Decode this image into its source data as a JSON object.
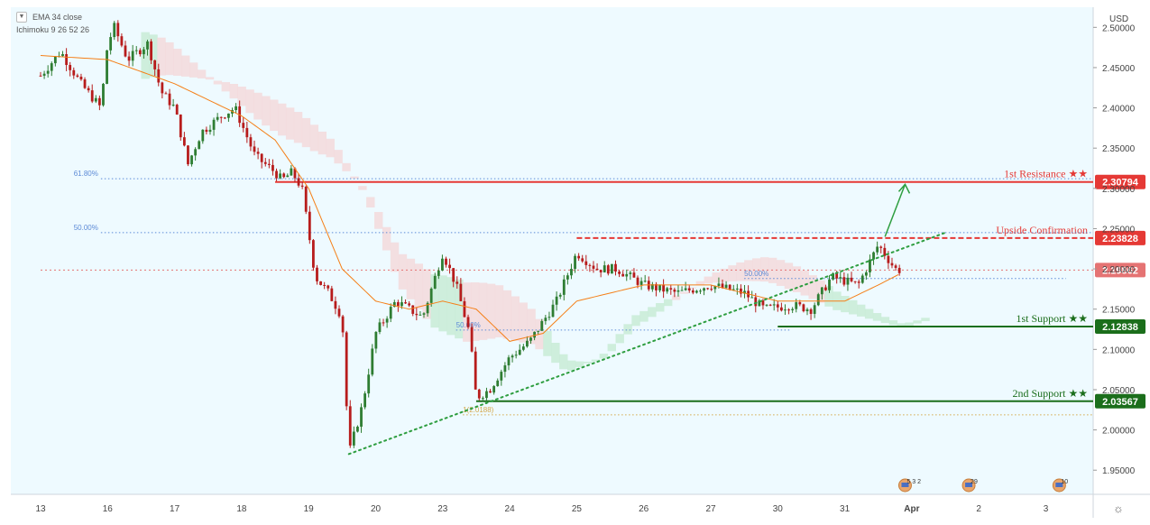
{
  "legend": {
    "ema_label": "EMA 34 close",
    "ichimoku_label": "Ichimoku 9 26 52 26"
  },
  "axis": {
    "currency": "USD"
  },
  "colors": {
    "background": "#eefaff",
    "candle_up": "#2e7d32",
    "candle_down": "#b71c1c",
    "ema": "#f57f17",
    "resistance": "#e53935",
    "support": "#1b6e1b",
    "fib": "#5c8ad6",
    "trendline": "#2e9e40",
    "cloud_bull": "#c8ebd6",
    "cloud_bear": "#f3d9dc"
  },
  "icons": {
    "settings": "gear-icon",
    "legend_toggle": "chevron-down-icon",
    "event_flag": "us-flag-icon"
  },
  "chart_data": {
    "type": "candlestick",
    "y_axis": {
      "range": [
        1.92,
        2.525
      ],
      "ticks": [
        "2.50000",
        "2.45000",
        "2.40000",
        "2.35000",
        "2.30000",
        "2.25000",
        "2.20000",
        "2.15000",
        "2.10000",
        "2.05000",
        "2.00000",
        "1.95000"
      ]
    },
    "x_axis": {
      "ticks": [
        "13",
        "16",
        "17",
        "18",
        "19",
        "20",
        "23",
        "24",
        "25",
        "26",
        "27",
        "30",
        "31",
        "Apr",
        "2",
        "3"
      ]
    },
    "close_path": [
      [
        0,
        2.44
      ],
      [
        0.3,
        2.47
      ],
      [
        0.6,
        2.43
      ],
      [
        0.9,
        2.4
      ],
      [
        1.0,
        2.48
      ],
      [
        1.1,
        2.5
      ],
      [
        1.3,
        2.46
      ],
      [
        1.6,
        2.48
      ],
      [
        1.8,
        2.42
      ],
      [
        2.0,
        2.4
      ],
      [
        2.2,
        2.33
      ],
      [
        2.4,
        2.37
      ],
      [
        2.7,
        2.39
      ],
      [
        2.9,
        2.4
      ],
      [
        3.2,
        2.34
      ],
      [
        3.5,
        2.32
      ],
      [
        3.6,
        2.31
      ],
      [
        3.75,
        2.32
      ],
      [
        3.9,
        2.3
      ],
      [
        4.1,
        2.19
      ],
      [
        4.3,
        2.17
      ],
      [
        4.5,
        2.14
      ],
      [
        4.6,
        1.97
      ],
      [
        4.8,
        2.03
      ],
      [
        5.0,
        2.12
      ],
      [
        5.3,
        2.16
      ],
      [
        5.7,
        2.14
      ],
      [
        6.0,
        2.22
      ],
      [
        6.2,
        2.18
      ],
      [
        6.4,
        2.12
      ],
      [
        6.5,
        2.04
      ],
      [
        6.7,
        2.05
      ],
      [
        7.0,
        2.09
      ],
      [
        7.3,
        2.11
      ],
      [
        7.7,
        2.16
      ],
      [
        8.0,
        2.22
      ],
      [
        8.3,
        2.2
      ],
      [
        8.6,
        2.2
      ],
      [
        9.0,
        2.18
      ],
      [
        9.5,
        2.17
      ],
      [
        10.0,
        2.18
      ],
      [
        10.5,
        2.17
      ],
      [
        10.8,
        2.15
      ],
      [
        11.2,
        2.155
      ],
      [
        11.5,
        2.15
      ],
      [
        11.8,
        2.19
      ],
      [
        12.2,
        2.18
      ],
      [
        12.5,
        2.23
      ],
      [
        12.75,
        2.2
      ],
      [
        12.85,
        2.198
      ]
    ],
    "ema_path": [
      [
        0,
        2.465
      ],
      [
        1.0,
        2.46
      ],
      [
        2.0,
        2.43
      ],
      [
        3.0,
        2.39
      ],
      [
        3.5,
        2.36
      ],
      [
        4.0,
        2.3
      ],
      [
        4.5,
        2.2
      ],
      [
        5.0,
        2.16
      ],
      [
        5.5,
        2.15
      ],
      [
        6.0,
        2.16
      ],
      [
        6.5,
        2.15
      ],
      [
        7.0,
        2.11
      ],
      [
        7.5,
        2.12
      ],
      [
        8.0,
        2.16
      ],
      [
        9.0,
        2.18
      ],
      [
        10.0,
        2.18
      ],
      [
        11.0,
        2.16
      ],
      [
        12.0,
        2.16
      ],
      [
        12.5,
        2.18
      ],
      [
        12.85,
        2.195
      ]
    ],
    "levels": [
      {
        "name": "1st Resistance ★★",
        "value": "2.30794",
        "role": "resistance",
        "style": "solid",
        "from_x": 3.5
      },
      {
        "name": "Upside Confirmation",
        "value": "2.23828",
        "role": "resistance",
        "style": "dashed",
        "from_x": 8.0
      },
      {
        "name": "",
        "value": "2.19862",
        "role": "current",
        "style": "dotted",
        "from_x": 0
      },
      {
        "name": "1st Support ★★",
        "value": "2.12838",
        "role": "support",
        "style": "solid",
        "from_x": 11.0
      },
      {
        "name": "2nd Support ★★",
        "value": "2.03567",
        "role": "support",
        "style": "solid",
        "from_x": 6.5
      }
    ],
    "fib_levels": [
      {
        "label": "61.80%",
        "value": 2.312
      },
      {
        "label": "50.00%",
        "value": 2.245
      },
      {
        "label": "50.00%",
        "value": 2.124
      },
      {
        "label": "50.00%",
        "value": 2.188
      },
      {
        "label": "1(2.0188)",
        "value": 2.0188
      }
    ],
    "trendline": [
      [
        4.6,
        1.97
      ],
      [
        13.5,
        2.245
      ]
    ],
    "projection_arrow": [
      [
        12.6,
        2.24
      ],
      [
        12.9,
        2.305
      ]
    ],
    "event_markers": [
      {
        "x": 12.9,
        "label": "5 3 2"
      },
      {
        "x": 13.85,
        "label": "29"
      },
      {
        "x": 15.2,
        "label": "10"
      }
    ]
  }
}
